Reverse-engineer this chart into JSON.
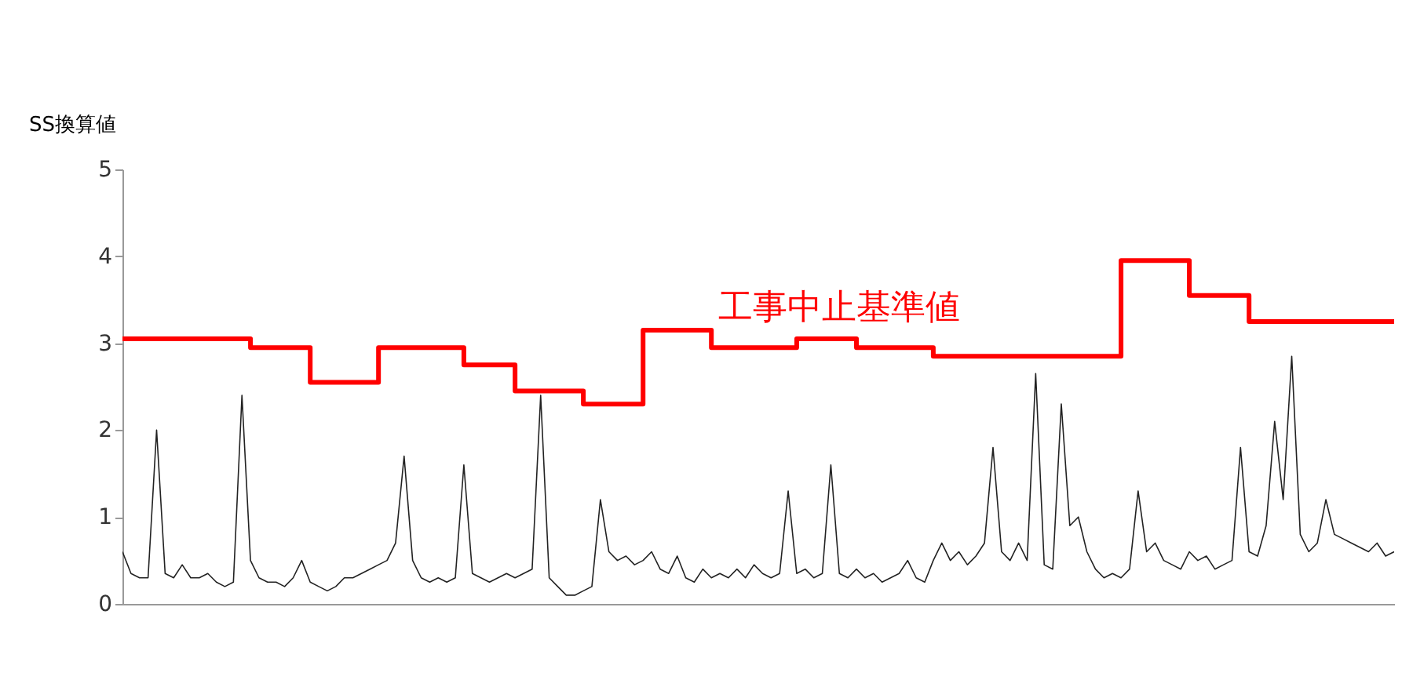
{
  "chart_data": {
    "type": "line",
    "ylabel": "SS換算値",
    "categories": [
      null,
      null,
      null,
      null,
      null,
      null,
      null,
      null,
      null,
      null,
      null,
      null,
      null,
      null,
      null,
      null,
      null,
      null,
      null,
      null,
      null,
      null,
      null,
      null,
      null,
      null,
      null,
      null,
      null,
      null,
      null,
      null,
      null,
      null,
      null,
      null,
      null,
      null,
      null,
      null,
      null,
      null,
      null,
      null,
      null,
      null,
      null,
      null,
      null,
      null,
      null,
      null,
      null,
      null,
      null,
      null,
      null,
      null,
      null,
      null,
      null,
      null,
      null,
      null,
      null,
      null,
      null,
      null,
      null,
      null,
      null,
      null,
      null,
      null,
      null,
      null,
      null,
      null,
      null,
      null,
      null,
      null,
      null,
      null,
      null,
      null,
      null,
      null,
      null,
      null,
      null,
      null,
      null,
      null,
      null,
      null,
      null,
      null,
      null,
      null,
      null,
      null,
      null,
      null,
      null,
      null,
      null,
      null,
      null,
      null,
      null,
      null,
      null,
      null,
      null,
      null,
      null,
      null,
      null,
      null,
      null,
      null,
      null,
      null,
      null,
      null,
      null,
      null,
      null,
      null,
      null,
      null,
      null,
      null,
      null,
      null,
      null,
      null,
      null,
      null,
      null,
      null,
      null,
      null,
      null,
      null,
      null,
      null,
      null,
      null
    ],
    "series": [
      {
        "color": "#222222",
        "values": [
          0.6,
          0.35,
          0.3,
          0.3,
          2.0,
          0.35,
          0.3,
          0.45,
          0.3,
          0.3,
          0.35,
          0.25,
          0.2,
          0.25,
          2.4,
          0.5,
          0.3,
          0.25,
          0.25,
          0.2,
          0.3,
          0.5,
          0.25,
          0.2,
          0.15,
          0.2,
          0.3,
          0.3,
          0.35,
          0.4,
          0.45,
          0.5,
          0.7,
          1.7,
          0.5,
          0.3,
          0.25,
          0.3,
          0.25,
          0.3,
          1.6,
          0.35,
          0.3,
          0.25,
          0.3,
          0.35,
          0.3,
          0.35,
          0.4,
          2.4,
          0.3,
          0.2,
          0.1,
          0.1,
          0.15,
          0.2,
          1.2,
          0.6,
          0.5,
          0.55,
          0.45,
          0.5,
          0.6,
          0.4,
          0.35,
          0.55,
          0.3,
          0.25,
          0.4,
          0.3,
          0.35,
          0.3,
          0.4,
          0.3,
          0.45,
          0.35,
          0.3,
          0.35,
          1.3,
          0.35,
          0.4,
          0.3,
          0.35,
          1.6,
          0.35,
          0.3,
          0.4,
          0.3,
          0.35,
          0.25,
          0.3,
          0.35,
          0.5,
          0.3,
          0.25,
          0.5,
          0.7,
          0.5,
          0.6,
          0.45,
          0.55,
          0.7,
          1.8,
          0.6,
          0.5,
          0.7,
          0.5,
          2.65,
          0.45,
          0.4,
          2.3,
          0.9,
          1.0,
          0.6,
          0.4,
          0.3,
          0.35,
          0.3,
          0.4,
          1.3,
          0.6,
          0.7,
          0.5,
          0.45,
          0.4,
          0.6,
          0.5,
          0.55,
          0.4,
          0.45,
          0.5,
          1.8,
          0.6,
          0.55,
          0.9,
          2.1,
          1.2,
          2.85,
          0.8,
          0.6,
          0.7,
          1.2,
          0.8,
          0.75,
          0.7,
          0.65,
          0.6,
          0.7,
          0.55,
          0.6
        ]
      },
      {
        "name": "工事中止基準値",
        "type": "step",
        "color": "#ff0000",
        "values": [
          3.05,
          3.05,
          3.05,
          3.05,
          3.05,
          3.05,
          3.05,
          3.05,
          3.05,
          3.05,
          3.05,
          3.05,
          3.05,
          3.05,
          3.05,
          2.95,
          2.95,
          2.95,
          2.95,
          2.95,
          2.95,
          2.95,
          2.55,
          2.55,
          2.55,
          2.55,
          2.55,
          2.55,
          2.55,
          2.55,
          2.95,
          2.95,
          2.95,
          2.95,
          2.95,
          2.95,
          2.95,
          2.95,
          2.95,
          2.95,
          2.75,
          2.75,
          2.75,
          2.75,
          2.75,
          2.75,
          2.45,
          2.45,
          2.45,
          2.45,
          2.45,
          2.45,
          2.45,
          2.45,
          2.3,
          2.3,
          2.3,
          2.3,
          2.3,
          2.3,
          2.3,
          3.15,
          3.15,
          3.15,
          3.15,
          3.15,
          3.15,
          3.15,
          3.15,
          2.95,
          2.95,
          2.95,
          2.95,
          2.95,
          2.95,
          2.95,
          2.95,
          2.95,
          2.95,
          3.05,
          3.05,
          3.05,
          3.05,
          3.05,
          3.05,
          3.05,
          2.95,
          2.95,
          2.95,
          2.95,
          2.95,
          2.95,
          2.95,
          2.95,
          2.95,
          2.85,
          2.85,
          2.85,
          2.85,
          2.85,
          2.85,
          2.85,
          2.85,
          2.85,
          2.85,
          2.85,
          2.85,
          2.85,
          2.85,
          2.85,
          2.85,
          2.85,
          2.85,
          2.85,
          2.85,
          2.85,
          2.85,
          3.95,
          3.95,
          3.95,
          3.95,
          3.95,
          3.95,
          3.95,
          3.95,
          3.55,
          3.55,
          3.55,
          3.55,
          3.55,
          3.55,
          3.55,
          3.25,
          3.25,
          3.25,
          3.25,
          3.25,
          3.25,
          3.25,
          3.25,
          3.25,
          3.25,
          3.25,
          3.25,
          3.25,
          3.25,
          3.25,
          3.25,
          3.25,
          3.25
        ]
      }
    ],
    "ylim": [
      0,
      5
    ],
    "yticks": [
      0,
      1,
      2,
      3,
      4,
      5
    ],
    "grid": false,
    "marker": "none"
  }
}
